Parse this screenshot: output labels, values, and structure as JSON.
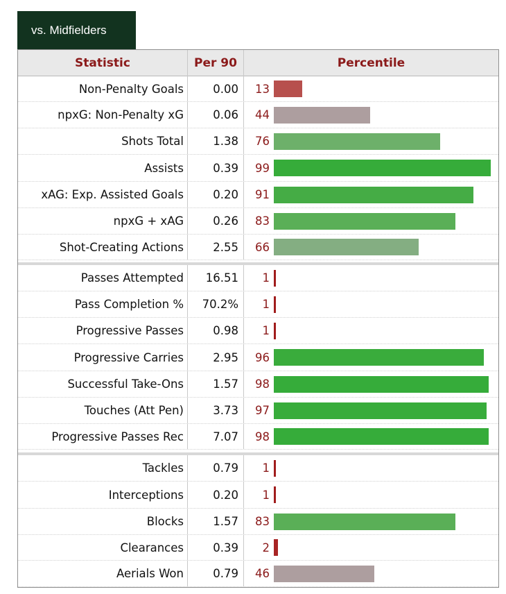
{
  "tab": {
    "label": "vs. Midfielders"
  },
  "header": {
    "statistic": "Statistic",
    "per90": "Per 90",
    "percentile": "Percentile"
  },
  "groups": [
    {
      "rows": [
        {
          "stat": "Non-Penalty Goals",
          "per90": "0.00",
          "percentile": 13,
          "color": "#b7504d"
        },
        {
          "stat": "npxG: Non-Penalty xG",
          "per90": "0.06",
          "percentile": 44,
          "color": "#ad9e9f"
        },
        {
          "stat": "Shots Total",
          "per90": "1.38",
          "percentile": 76,
          "color": "#6db06a"
        },
        {
          "stat": "Assists",
          "per90": "0.39",
          "percentile": 99,
          "color": "#36ac3a"
        },
        {
          "stat": "xAG: Exp. Assisted Goals",
          "per90": "0.20",
          "percentile": 91,
          "color": "#45ac45"
        },
        {
          "stat": "npxG + xAG",
          "per90": "0.26",
          "percentile": 83,
          "color": "#5aaf57"
        },
        {
          "stat": "Shot-Creating Actions",
          "per90": "2.55",
          "percentile": 66,
          "color": "#84ae82"
        }
      ]
    },
    {
      "rows": [
        {
          "stat": "Passes Attempted",
          "per90": "16.51",
          "percentile": 1,
          "color": "#a01c1c"
        },
        {
          "stat": "Pass Completion %",
          "per90": "70.2%",
          "percentile": 1,
          "color": "#a01c1c"
        },
        {
          "stat": "Progressive Passes",
          "per90": "0.98",
          "percentile": 1,
          "color": "#a01c1c"
        },
        {
          "stat": "Progressive Carries",
          "per90": "2.95",
          "percentile": 96,
          "color": "#3aac3c"
        },
        {
          "stat": "Successful Take-Ons",
          "per90": "1.57",
          "percentile": 98,
          "color": "#36ac3a"
        },
        {
          "stat": "Touches (Att Pen)",
          "per90": "3.73",
          "percentile": 97,
          "color": "#38ac3b"
        },
        {
          "stat": "Progressive Passes Rec",
          "per90": "7.07",
          "percentile": 98,
          "color": "#36ac3a"
        }
      ]
    },
    {
      "rows": [
        {
          "stat": "Tackles",
          "per90": "0.79",
          "percentile": 1,
          "color": "#a01c1c"
        },
        {
          "stat": "Interceptions",
          "per90": "0.20",
          "percentile": 1,
          "color": "#a01c1c"
        },
        {
          "stat": "Blocks",
          "per90": "1.57",
          "percentile": 83,
          "color": "#5aaf57"
        },
        {
          "stat": "Clearances",
          "per90": "0.39",
          "percentile": 2,
          "color": "#a82424"
        },
        {
          "stat": "Aerials Won",
          "per90": "0.79",
          "percentile": 46,
          "color": "#ad9e9f"
        }
      ]
    }
  ]
}
